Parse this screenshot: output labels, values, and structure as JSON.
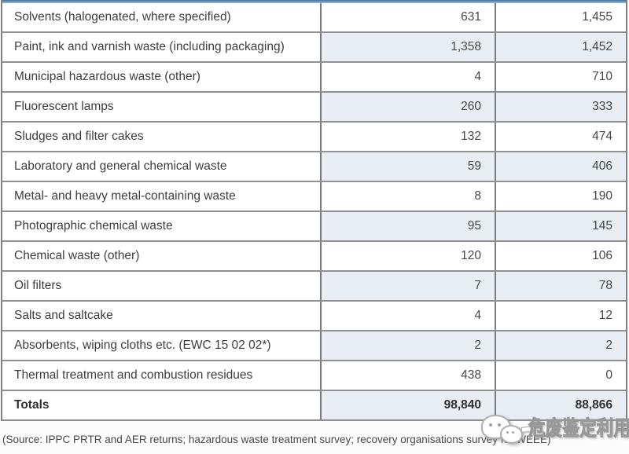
{
  "chart_data": {
    "type": "table",
    "rows": [
      {
        "label": "Solvents (halogenated, where specified)",
        "col1": "631",
        "col2": "1,455"
      },
      {
        "label": "Paint, ink and varnish waste (including packaging)",
        "col1": "1,358",
        "col2": "1,452"
      },
      {
        "label": "Municipal hazardous waste (other)",
        "col1": "4",
        "col2": "710"
      },
      {
        "label": "Fluorescent lamps",
        "col1": "260",
        "col2": "333"
      },
      {
        "label": "Sludges and filter cakes",
        "col1": "132",
        "col2": "474"
      },
      {
        "label": "Laboratory and general chemical waste",
        "col1": "59",
        "col2": "406"
      },
      {
        "label": "Metal- and heavy metal-containing waste",
        "col1": "8",
        "col2": "190"
      },
      {
        "label": "Photographic chemical waste",
        "col1": "95",
        "col2": "145"
      },
      {
        "label": "Chemical waste (other)",
        "col1": "120",
        "col2": "106"
      },
      {
        "label": "Oil filters",
        "col1": "7",
        "col2": "78"
      },
      {
        "label": "Salts and saltcake",
        "col1": "4",
        "col2": "12"
      },
      {
        "label": "Absorbents, wiping cloths etc. (EWC 15 02 02*)",
        "col1": "2",
        "col2": "2"
      },
      {
        "label": "Thermal treatment and combustion residues",
        "col1": "438",
        "col2": "0"
      },
      {
        "label": "Totals",
        "col1": "98,840",
        "col2": "88,866"
      }
    ]
  },
  "source_note": "(Source: IPPC PRTR and AER returns; hazardous waste treatment survey; recovery organisations survey for WEEE)",
  "watermark": {
    "icon": "wechat-logo",
    "text": "危废鉴定利用"
  },
  "colors": {
    "shaded_cell": "#e8ecf3",
    "top_border_blue": "#4f81ae",
    "grid_line": "#7f7f7f",
    "text": "#3d3d3d"
  }
}
